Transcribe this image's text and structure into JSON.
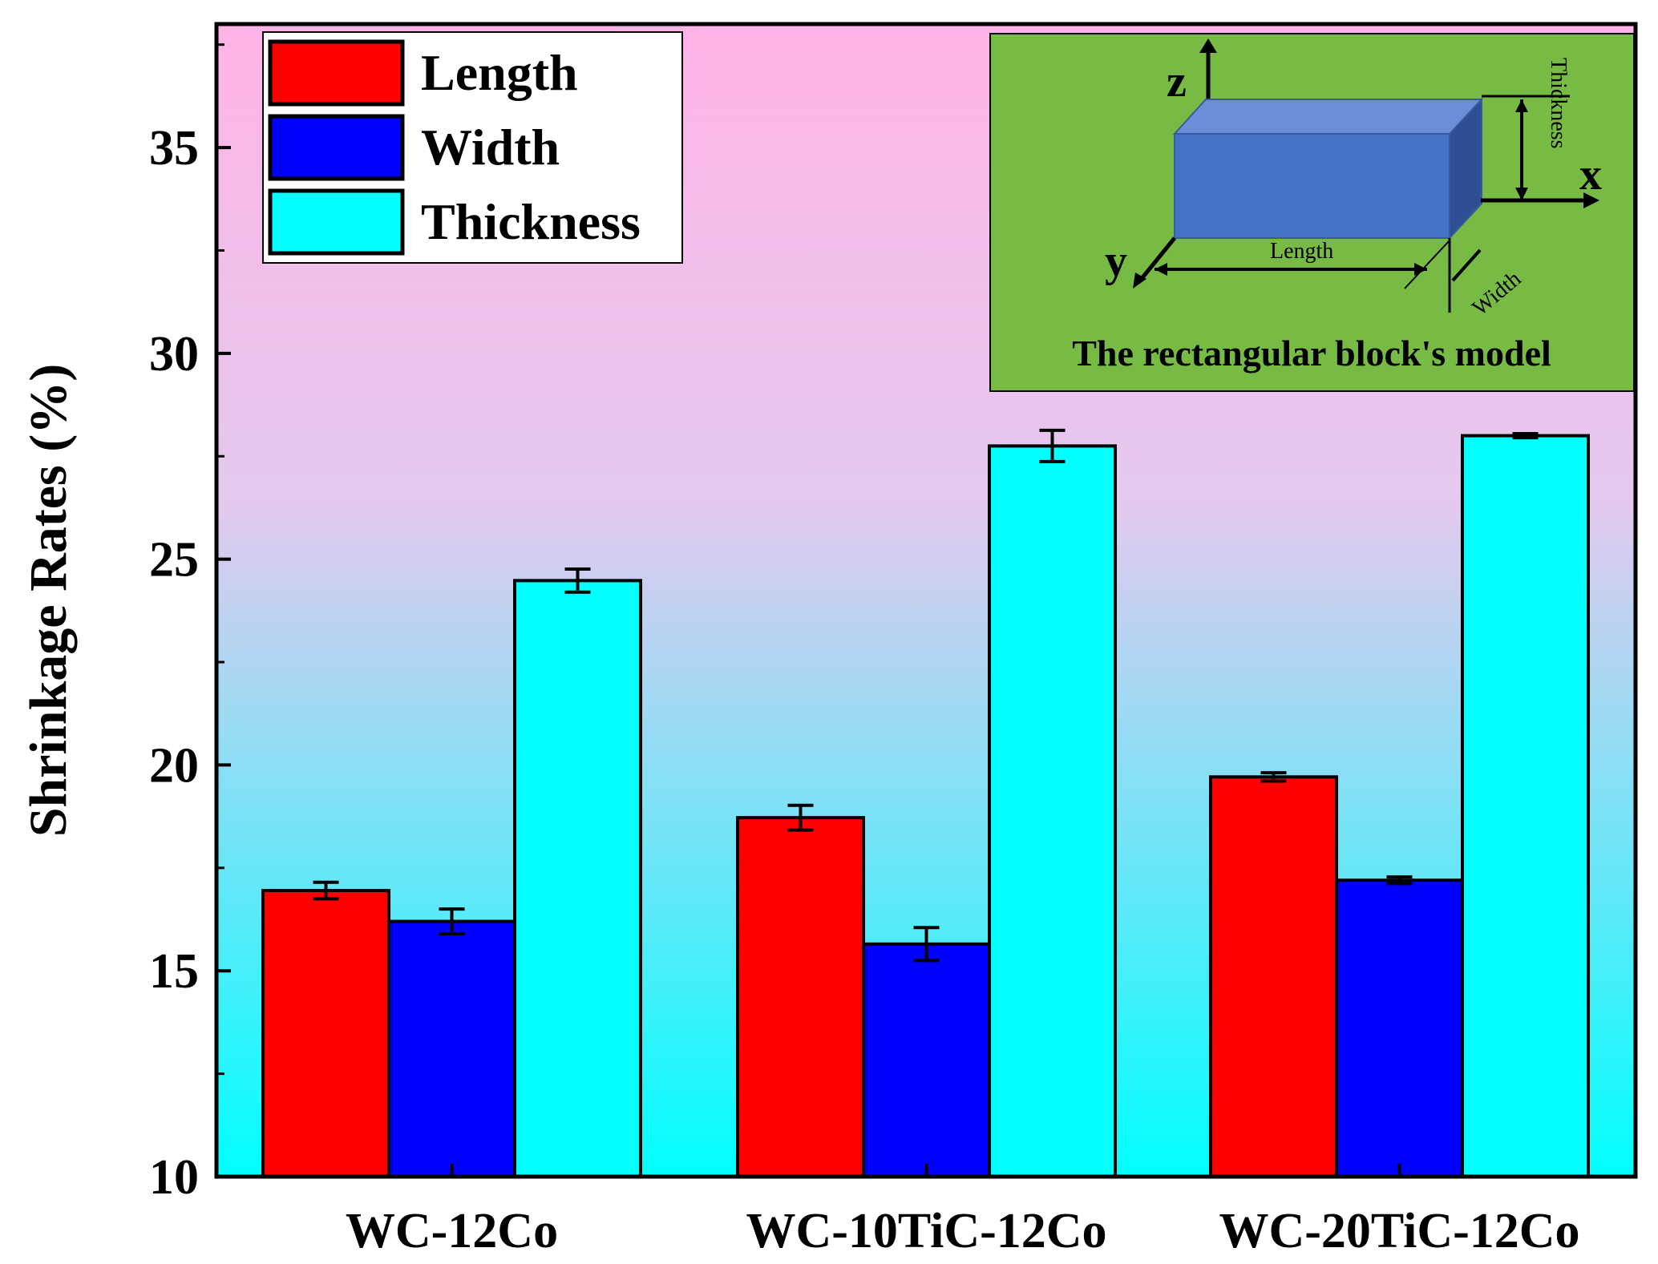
{
  "chart_data": {
    "type": "bar",
    "ylabel": "Shrinkage Rates (%)",
    "xlabel": "",
    "ylim": [
      10,
      38
    ],
    "yticks": [
      10,
      15,
      20,
      25,
      30,
      35
    ],
    "categories": [
      "WC-12Co",
      "WC-10TiC-12Co",
      "WC-20TiC-12Co"
    ],
    "series": [
      {
        "name": "Length",
        "color": "#ff0000",
        "values": [
          16.95,
          18.72,
          19.71
        ],
        "errors": [
          0.2,
          0.3,
          0.1
        ]
      },
      {
        "name": "Width",
        "color": "#0000ff",
        "values": [
          16.2,
          15.65,
          17.2
        ],
        "errors": [
          0.3,
          0.4,
          0.08
        ]
      },
      {
        "name": "Thickness",
        "color": "#00ffff",
        "values": [
          24.48,
          27.75,
          28.0
        ],
        "errors": [
          0.28,
          0.38,
          0.05
        ]
      }
    ],
    "legend_position": "top-left",
    "background_gradient": {
      "top": "#ffb3e6",
      "bottom": "#00ffff"
    }
  },
  "inset": {
    "caption": "The rectangular block's model",
    "background": "#77bb44",
    "block_color": "#4472c4",
    "axis_x": "x",
    "axis_y": "y",
    "axis_z": "z",
    "dim_length": "Length",
    "dim_width": "Width",
    "dim_thickness": "Thickness"
  }
}
